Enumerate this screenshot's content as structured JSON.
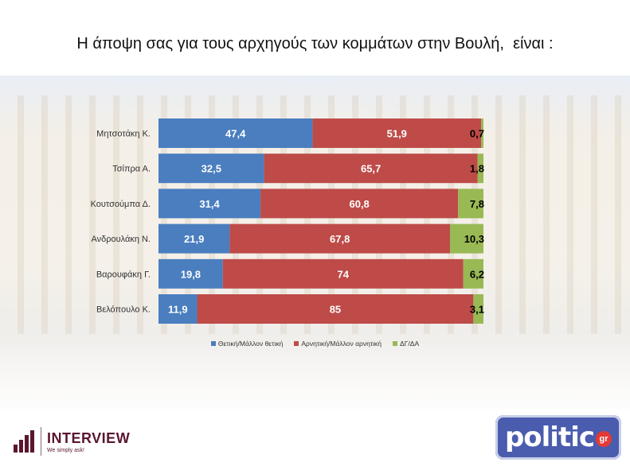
{
  "title": "Η άποψη σας για τους αρχηγούς των κομμάτων στην Βουλή,  είναι :",
  "chart_data": {
    "type": "bar",
    "orientation": "horizontal",
    "stacked": true,
    "categories": [
      "Μητσοτάκη Κ.",
      "Τσίπρα Α.",
      "Κουτσούμπα Δ.",
      "Ανδρουλάκη Ν.",
      "Βαρουφάκη Γ.",
      "Βελόπουλο Κ."
    ],
    "series": [
      {
        "name": "Θετική/Μάλλον θετική",
        "color": "#4a7ebf",
        "values": [
          47.4,
          32.5,
          31.4,
          21.9,
          19.8,
          11.9
        ],
        "labels": [
          "47,4",
          "32,5",
          "31,4",
          "21,9",
          "19,8",
          "11,9"
        ]
      },
      {
        "name": "Αρνητική/Μάλλον αρνητική",
        "color": "#be4b48",
        "values": [
          51.9,
          65.7,
          60.8,
          67.8,
          74,
          85
        ],
        "labels": [
          "51,9",
          "65,7",
          "60,8",
          "67,8",
          "74",
          "85"
        ]
      },
      {
        "name": "ΔΓ/ΔΑ",
        "color": "#98b954",
        "values": [
          0.7,
          1.8,
          7.8,
          10.3,
          6.2,
          3.1
        ],
        "labels": [
          "0,7",
          "1,8",
          "7,8",
          "10,3",
          "6,2",
          "3,1"
        ]
      }
    ],
    "xlim": [
      0,
      100
    ],
    "legend_position": "bottom",
    "grid": false
  },
  "logos": {
    "interview_name": "INTERVIEW",
    "interview_tagline": "We simply ask!",
    "politic_name": "politic",
    "politic_suffix": "gr"
  }
}
